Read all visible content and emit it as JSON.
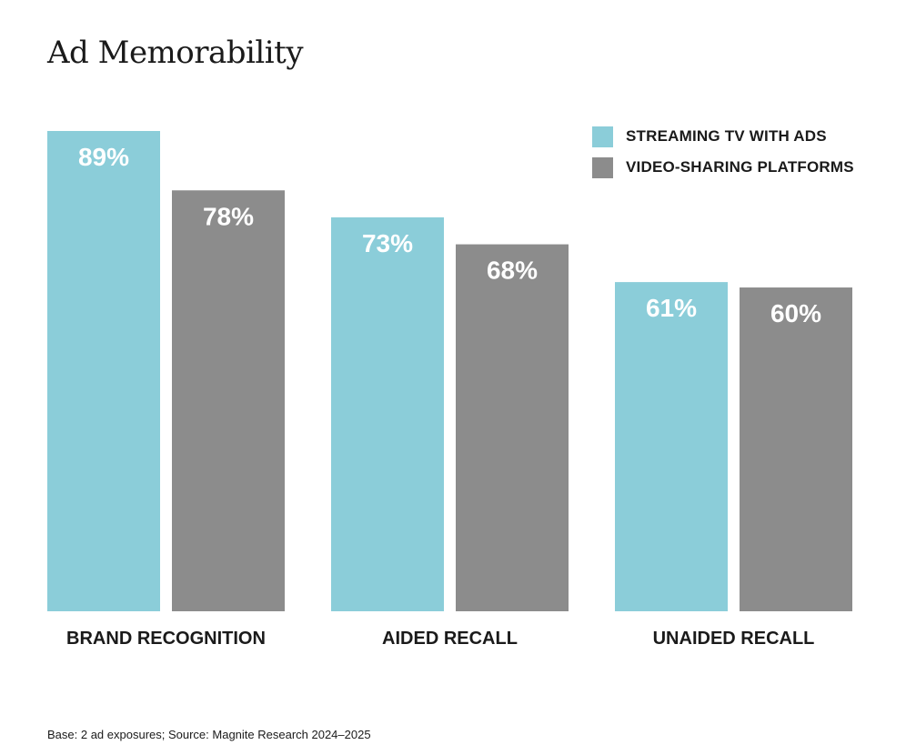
{
  "chart_data": {
    "type": "bar",
    "title": "Ad Memorability",
    "categories": [
      "BRAND RECOGNITION",
      "AIDED RECALL",
      "UNAIDED RECALL"
    ],
    "series": [
      {
        "name": "STREAMING TV WITH ADS",
        "color": "#8bcdd9",
        "values": [
          89,
          73,
          61
        ],
        "labels": [
          "89%",
          "73%",
          "61%"
        ]
      },
      {
        "name": "VIDEO-SHARING PLATFORMS",
        "color": "#8c8c8c",
        "values": [
          78,
          68,
          60
        ],
        "labels": [
          "78%",
          "68%",
          "60%"
        ]
      }
    ],
    "ylim": [
      0,
      89
    ],
    "xlabel": "",
    "ylabel": "",
    "grid": false,
    "legend": "top-right"
  },
  "footer": {
    "source": "Base: 2 ad exposures; Source: Magnite Research 2024–2025"
  }
}
